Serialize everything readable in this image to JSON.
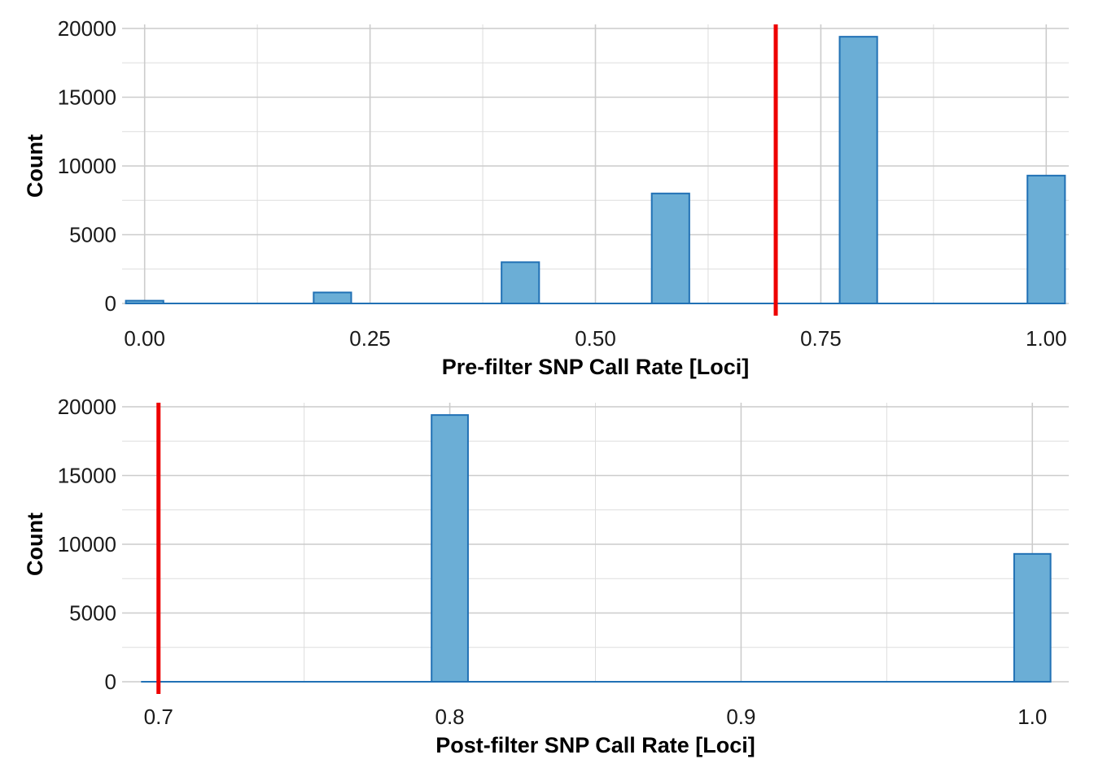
{
  "chart_data": [
    {
      "type": "bar",
      "subtype": "histogram",
      "xlabel": "Pre-filter SNP Call Rate [Loci]",
      "ylabel": "Count",
      "xlim": [
        -0.025,
        1.025
      ],
      "ylim": [
        0,
        20000
      ],
      "x_ticks": [
        0.0,
        0.25,
        0.5,
        0.75,
        1.0
      ],
      "x_tick_labels": [
        "0.00",
        "0.25",
        "0.50",
        "0.75",
        "1.00"
      ],
      "y_ticks": [
        0,
        5000,
        10000,
        15000,
        20000
      ],
      "y_tick_labels": [
        "0",
        "5000",
        "10000",
        "15000",
        "20000"
      ],
      "bin_width": 0.04167,
      "bins": [
        {
          "x": 0.0,
          "count": 200
        },
        {
          "x": 0.2083,
          "count": 800
        },
        {
          "x": 0.4167,
          "count": 3000
        },
        {
          "x": 0.5833,
          "count": 8000
        },
        {
          "x": 0.7917,
          "count": 19400
        },
        {
          "x": 1.0,
          "count": 9300
        }
      ],
      "threshold": 0.7,
      "threshold_color": "#ee0000",
      "bar_fill": "#6baed6",
      "bar_stroke": "#2171b5",
      "grid": true
    },
    {
      "type": "bar",
      "subtype": "histogram",
      "xlabel": "Post-filter SNP Call Rate [Loci]",
      "ylabel": "Count",
      "xlim": [
        0.6875,
        1.0125
      ],
      "ylim": [
        0,
        20000
      ],
      "x_ticks": [
        0.7,
        0.8,
        0.9,
        1.0
      ],
      "x_tick_labels": [
        "0.7",
        "0.8",
        "0.9",
        "1.0"
      ],
      "y_ticks": [
        0,
        5000,
        10000,
        15000,
        20000
      ],
      "y_tick_labels": [
        "0",
        "5000",
        "10000",
        "15000",
        "20000"
      ],
      "bin_width": 0.0125,
      "bins": [
        {
          "x": 0.8,
          "count": 19400
        },
        {
          "x": 1.0,
          "count": 9300
        }
      ],
      "threshold": 0.7,
      "threshold_color": "#ee0000",
      "bar_fill": "#6baed6",
      "bar_stroke": "#2171b5",
      "grid": true
    }
  ]
}
